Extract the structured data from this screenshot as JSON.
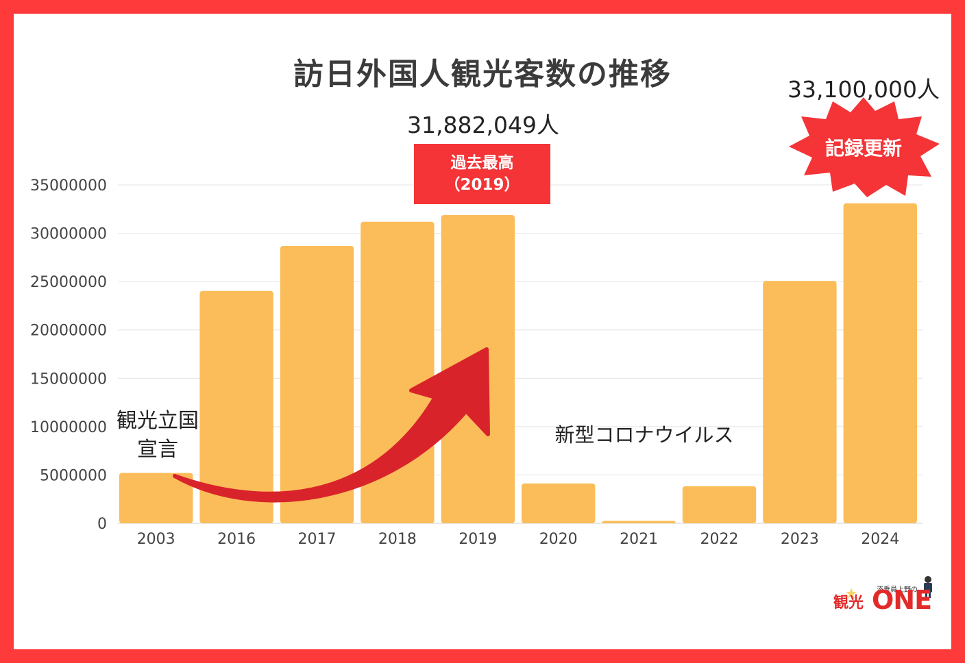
{
  "title": "訪日外国人観光客数の推移",
  "peak": {
    "value_text": "31,882,049人",
    "badge_line1": "過去最高",
    "badge_line2": "（2019）"
  },
  "record": {
    "value_text": "33,100,000人",
    "badge": "記録更新"
  },
  "annotations": {
    "declaration_line1": "観光立国",
    "declaration_line2": "宣言",
    "covid": "新型コロナウイルス"
  },
  "logo": {
    "sub": "添乗員上野の",
    "main": "観光",
    "one": "ONE"
  },
  "colors": {
    "bar": "#fbbd59",
    "accent": "#f43437",
    "frame": "#ff3a3a",
    "arrow": "#d9232b",
    "grid": "#e4e4e4"
  },
  "chart_data": {
    "type": "bar",
    "categories": [
      "2003",
      "2016",
      "2017",
      "2018",
      "2019",
      "2020",
      "2021",
      "2022",
      "2023",
      "2024"
    ],
    "values": [
      5210000,
      24040000,
      28690000,
      31190000,
      31882049,
      4120000,
      250000,
      3830000,
      25070000,
      33100000
    ],
    "ylim": [
      0,
      35000000
    ],
    "yticks": [
      "0",
      "5000000",
      "10000000",
      "15000000",
      "20000000",
      "25000000",
      "30000000",
      "35000000"
    ],
    "xlabel": "",
    "ylabel": "",
    "grid": true
  }
}
